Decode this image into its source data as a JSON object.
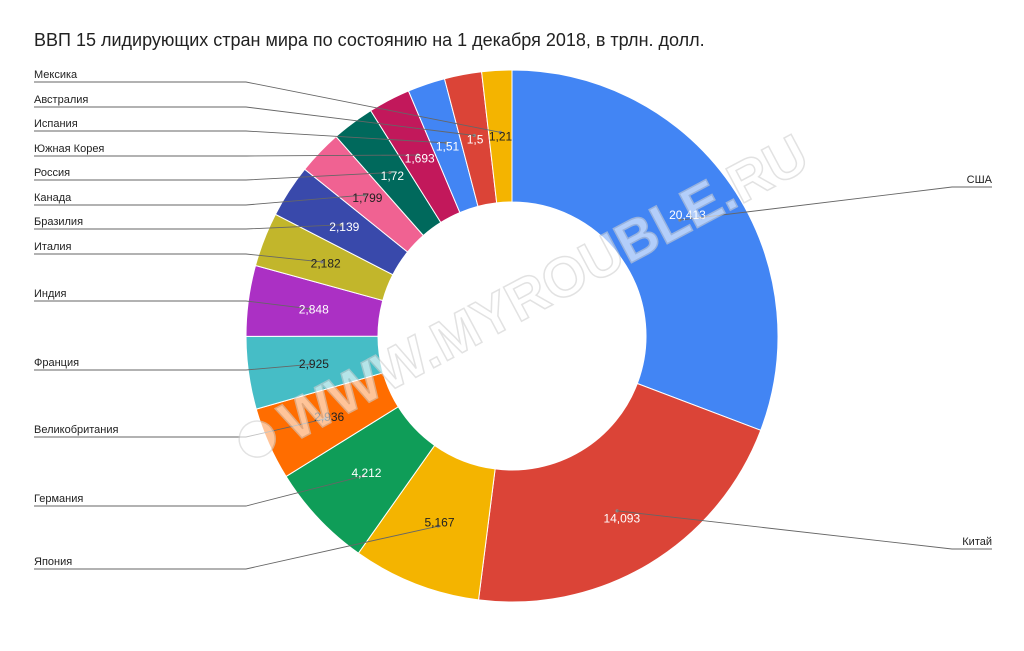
{
  "chart_data": {
    "type": "pie",
    "title": "ВВП 15 лидирующих стран мира по состоянию на 1 декабря 2018, в трлн. долл.",
    "donut": true,
    "labels": [
      "США",
      "Китай",
      "Япония",
      "Германия",
      "Великобритания",
      "Франция",
      "Индия",
      "Италия",
      "Бразилия",
      "Канада",
      "Россия",
      "Южная Корея",
      "Испания",
      "Австралия",
      "Мексика"
    ],
    "values": [
      20.413,
      14.093,
      5.167,
      4.212,
      2.936,
      2.925,
      2.848,
      2.182,
      2.139,
      1.799,
      1.72,
      1.693,
      1.51,
      1.5,
      1.21
    ],
    "value_labels": [
      "20,413",
      "14,093",
      "5,167",
      "4,212",
      "2,936",
      "2,925",
      "2,848",
      "2,182",
      "2,139",
      "1,799",
      "1,72",
      "1,693",
      "1,51",
      "1,5",
      "1,21"
    ],
    "colors": [
      "#4285f4",
      "#db4437",
      "#f4b400",
      "#0f9d58",
      "#ff6d00",
      "#46bdc6",
      "#ab30c4",
      "#c2b62b",
      "#3949ab",
      "#f06292",
      "#00695c",
      "#c2185b",
      "#4285f4",
      "#db4437",
      "#f4b400"
    ],
    "value_label_colors": [
      "#ffffff",
      "#ffffff",
      "#222222",
      "#ffffff",
      "#222222",
      "#222222",
      "#ffffff",
      "#222222",
      "#ffffff",
      "#222222",
      "#ffffff",
      "#ffffff",
      "#ffffff",
      "#ffffff",
      "#222222"
    ],
    "legend": "callout labels"
  },
  "watermark": "WWW.MYROUBLE.RU"
}
